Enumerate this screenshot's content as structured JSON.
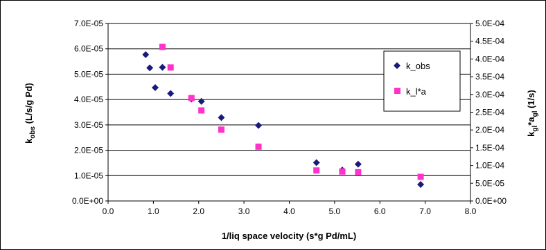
{
  "chart_data": {
    "type": "scatter",
    "title": "",
    "xlabel": "1/liq space velocity (s*g Pd/mL)",
    "ylabel": {
      "main": "k",
      "sub": "obs",
      "rest": " (L/s/g Pd)"
    },
    "y2label": {
      "main1": "k",
      "sub1": "gl",
      "mid": "*a",
      "sub2": "gl",
      "rest": " (1/s)"
    },
    "xlim": [
      0,
      8
    ],
    "ylim": [
      0,
      7e-05
    ],
    "y2lim": [
      0,
      0.0005
    ],
    "x_ticks": [
      "0.0",
      "1.0",
      "2.0",
      "3.0",
      "4.0",
      "5.0",
      "6.0",
      "7.0",
      "8.0"
    ],
    "y_ticks": [
      "0.0E+00",
      "1.0E-05",
      "2.0E-05",
      "3.0E-05",
      "4.0E-05",
      "5.0E-05",
      "6.0E-05",
      "7.0E-05"
    ],
    "y2_ticks": [
      "0.0E+00",
      "5.0E-05",
      "1.0E-04",
      "1.5E-04",
      "2.0E-04",
      "2.5E-04",
      "3.0E-04",
      "3.5E-04",
      "4.0E-04",
      "4.5E-04",
      "5.0E-04"
    ],
    "grid": "horizontal",
    "legend_position": "right",
    "series": [
      {
        "name": "k_obs",
        "axis": "left",
        "marker": "diamond",
        "color": "#1a1a7a",
        "points": [
          [
            0.83,
            5.77e-05
          ],
          [
            0.92,
            5.25e-05
          ],
          [
            1.04,
            4.47e-05
          ],
          [
            1.2,
            5.27e-05
          ],
          [
            1.38,
            4.24e-05
          ],
          [
            1.84,
            4.02e-05
          ],
          [
            2.06,
            3.93e-05
          ],
          [
            2.5,
            3.29e-05
          ],
          [
            3.32,
            2.98e-05
          ],
          [
            4.6,
            1.51e-05
          ],
          [
            5.17,
            1.22e-05
          ],
          [
            5.52,
            1.45e-05
          ],
          [
            6.9,
            6.5e-06
          ]
        ]
      },
      {
        "name": "k_l*a",
        "axis": "right",
        "marker": "square",
        "color": "#ff33cc",
        "points": [
          [
            1.2,
            0.000434
          ],
          [
            1.38,
            0.000376
          ],
          [
            1.84,
            0.00029
          ],
          [
            2.06,
            0.000255
          ],
          [
            2.5,
            0.000201
          ],
          [
            3.32,
            0.000153
          ],
          [
            4.6,
            8.6e-05
          ],
          [
            5.17,
            8.3e-05
          ],
          [
            5.52,
            8.1e-05
          ],
          [
            6.9,
            6.8e-05
          ]
        ]
      }
    ]
  }
}
